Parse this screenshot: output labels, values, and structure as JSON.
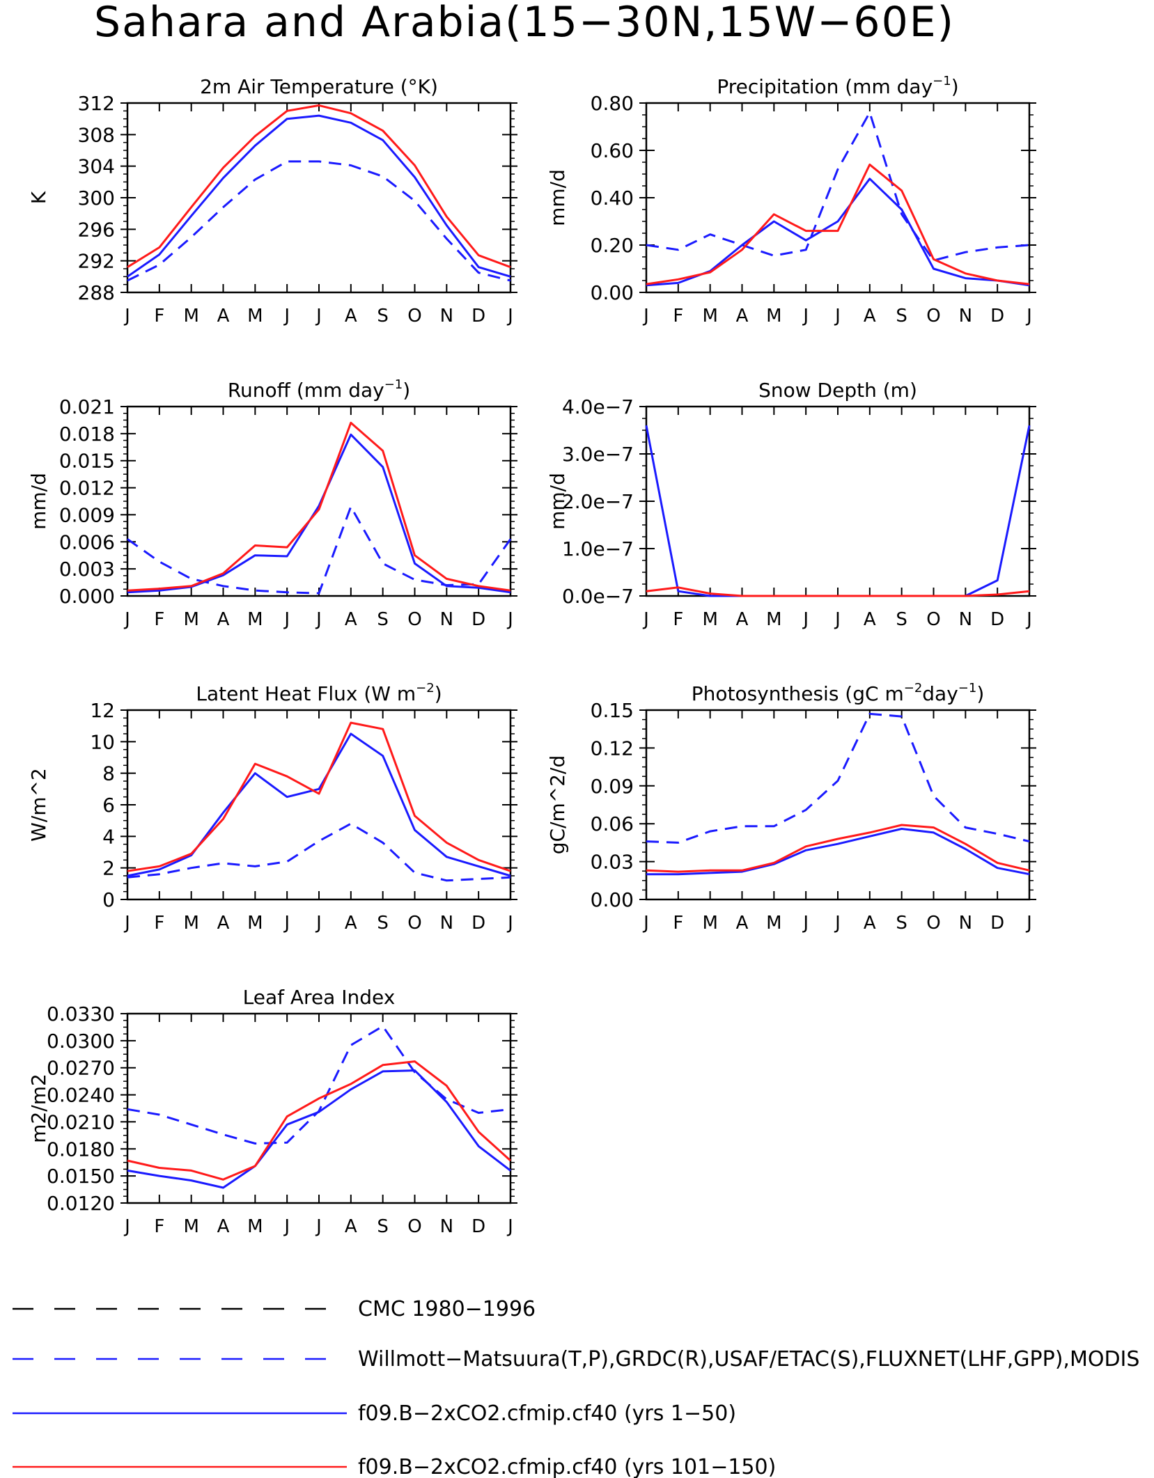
{
  "page_title": "Sahara and Arabia(15−30N,15W−60E)",
  "months": [
    "J",
    "F",
    "M",
    "A",
    "M",
    "J",
    "J",
    "A",
    "S",
    "O",
    "N",
    "D",
    "J"
  ],
  "colors": {
    "obs": "#1a1aff",
    "run1": "#1a1aff",
    "run2": "#ff1a1a",
    "cmc": "#000000"
  },
  "legend": [
    {
      "key": "cmc",
      "label": "CMC 1980−1996",
      "color": "#000000",
      "dash": true
    },
    {
      "key": "obs",
      "label": "Willmott−Matsuura(T,P),GRDC(R),USAF/ETAC(S),FLUXNET(LHF,GPP),MODIS",
      "color": "#1a1aff",
      "dash": true
    },
    {
      "key": "run1",
      "label": "f09.B−2xCO2.cfmip.cf40 (yrs 1−50)",
      "color": "#1a1aff",
      "dash": false
    },
    {
      "key": "run2",
      "label": "f09.B−2xCO2.cfmip.cf40 (yrs 101−150)",
      "color": "#ff1a1a",
      "dash": false
    }
  ],
  "chart_data": [
    {
      "type": "line",
      "title": "2m Air Temperature (°K)",
      "ylabel": "K",
      "ylim": [
        288,
        312
      ],
      "yticks": [
        "288",
        "292",
        "296",
        "300",
        "304",
        "308",
        "312"
      ],
      "x": [
        "J",
        "F",
        "M",
        "A",
        "M",
        "J",
        "J",
        "A",
        "S",
        "O",
        "N",
        "D",
        "J"
      ],
      "series": [
        {
          "key": "obs",
          "values": [
            289.5,
            291.5,
            295.0,
            298.8,
            302.3,
            304.6,
            304.6,
            304.1,
            302.7,
            299.6,
            294.8,
            290.5,
            289.5
          ]
        },
        {
          "key": "run1",
          "values": [
            290.0,
            292.8,
            297.7,
            302.5,
            306.6,
            310.0,
            310.4,
            309.5,
            307.3,
            302.6,
            296.5,
            291.2,
            290.0
          ]
        },
        {
          "key": "run2",
          "values": [
            291.2,
            293.7,
            298.8,
            303.8,
            307.8,
            311.0,
            311.7,
            310.7,
            308.5,
            304.1,
            297.6,
            292.7,
            291.2
          ]
        }
      ]
    },
    {
      "type": "line",
      "title": "Precipitation (mm day",
      "title_sup": "−1",
      "title_end": ")",
      "ylabel": "mm/d",
      "ylim": [
        0,
        0.8
      ],
      "yticks": [
        "0.00",
        "0.20",
        "0.40",
        "0.60",
        "0.80"
      ],
      "x": [
        "J",
        "F",
        "M",
        "A",
        "M",
        "J",
        "J",
        "A",
        "S",
        "O",
        "N",
        "D",
        "J"
      ],
      "series": [
        {
          "key": "obs",
          "values": [
            0.2,
            0.18,
            0.245,
            0.2,
            0.155,
            0.18,
            0.52,
            0.76,
            0.33,
            0.135,
            0.17,
            0.19,
            0.2
          ]
        },
        {
          "key": "run1",
          "values": [
            0.03,
            0.04,
            0.09,
            0.2,
            0.3,
            0.22,
            0.3,
            0.48,
            0.35,
            0.1,
            0.06,
            0.05,
            0.03
          ]
        },
        {
          "key": "run2",
          "values": [
            0.035,
            0.055,
            0.085,
            0.18,
            0.33,
            0.26,
            0.26,
            0.54,
            0.43,
            0.14,
            0.08,
            0.05,
            0.035
          ]
        }
      ]
    },
    {
      "type": "line",
      "title": "Runoff (mm day",
      "title_sup": "−1",
      "title_end": ")",
      "ylabel": "mm/d",
      "ylim": [
        0,
        0.021
      ],
      "yticks": [
        "0.000",
        "0.003",
        "0.006",
        "0.009",
        "0.012",
        "0.015",
        "0.018",
        "0.021"
      ],
      "x": [
        "J",
        "F",
        "M",
        "A",
        "M",
        "J",
        "J",
        "A",
        "S",
        "O",
        "N",
        "D",
        "J"
      ],
      "series": [
        {
          "key": "obs",
          "values": [
            0.0063,
            0.0038,
            0.0019,
            0.0011,
            0.0006,
            0.0004,
            0.0003,
            0.0099,
            0.0036,
            0.0018,
            0.0012,
            0.0013,
            0.0063
          ]
        },
        {
          "key": "run1",
          "values": [
            0.0004,
            0.0006,
            0.001,
            0.0023,
            0.0045,
            0.0044,
            0.01,
            0.0179,
            0.0143,
            0.0036,
            0.0011,
            0.0009,
            0.0004
          ]
        },
        {
          "key": "run2",
          "values": [
            0.0006,
            0.0008,
            0.0011,
            0.0025,
            0.0056,
            0.0054,
            0.0096,
            0.0192,
            0.0161,
            0.0045,
            0.0019,
            0.0011,
            0.0006
          ]
        }
      ]
    },
    {
      "type": "line",
      "title": "Snow Depth (m)",
      "ylabel": "mm/d",
      "ylim": [
        0,
        4e-07
      ],
      "yticks": [
        "0.0e−7",
        "1.0e−7",
        "2.0e−7",
        "3.0e−7",
        "4.0e−7"
      ],
      "x": [
        "J",
        "F",
        "M",
        "A",
        "M",
        "J",
        "J",
        "A",
        "S",
        "O",
        "N",
        "D",
        "J"
      ],
      "series": [
        {
          "key": "run1",
          "values": [
            3.6e-07,
            1e-08,
            0,
            0,
            0,
            0,
            0,
            0,
            0,
            0,
            0,
            3.3e-08,
            3.6e-07
          ]
        },
        {
          "key": "run2",
          "values": [
            1e-08,
            1.8e-08,
            5e-09,
            0,
            0,
            0,
            0,
            0,
            0,
            0,
            0,
            3e-09,
            1e-08
          ]
        }
      ]
    },
    {
      "type": "line",
      "title": "Latent Heat Flux (W m",
      "title_sup": "−2",
      "title_end": ")",
      "ylabel": "W/m^2",
      "ylim": [
        0,
        12
      ],
      "yticks": [
        "0",
        "2",
        "4",
        "6",
        "8",
        "10",
        "12"
      ],
      "x": [
        "J",
        "F",
        "M",
        "A",
        "M",
        "J",
        "J",
        "A",
        "S",
        "O",
        "N",
        "D",
        "J"
      ],
      "series": [
        {
          "key": "obs",
          "values": [
            1.4,
            1.6,
            2.0,
            2.3,
            2.1,
            2.4,
            3.7,
            4.8,
            3.6,
            1.7,
            1.2,
            1.3,
            1.4
          ]
        },
        {
          "key": "run1",
          "values": [
            1.5,
            1.9,
            2.8,
            5.5,
            8.0,
            6.5,
            7.0,
            10.5,
            9.1,
            4.4,
            2.7,
            2.1,
            1.5
          ]
        },
        {
          "key": "run2",
          "values": [
            1.8,
            2.1,
            2.9,
            5.1,
            8.6,
            7.8,
            6.7,
            11.2,
            10.8,
            5.3,
            3.6,
            2.5,
            1.8
          ]
        }
      ]
    },
    {
      "type": "line",
      "title": "Photosynthesis (gC m",
      "title_sup": "−2",
      "title_mid": "day",
      "title_sup2": "−1",
      "title_end": ")",
      "ylabel": "gC/m^2/d",
      "ylim": [
        0,
        0.15
      ],
      "yticks": [
        "0.00",
        "0.03",
        "0.06",
        "0.09",
        "0.12",
        "0.15"
      ],
      "x": [
        "J",
        "F",
        "M",
        "A",
        "M",
        "J",
        "J",
        "A",
        "S",
        "O",
        "N",
        "D",
        "J"
      ],
      "series": [
        {
          "key": "obs",
          "values": [
            0.046,
            0.045,
            0.054,
            0.058,
            0.058,
            0.071,
            0.094,
            0.147,
            0.145,
            0.082,
            0.057,
            0.052,
            0.046
          ]
        },
        {
          "key": "run1",
          "values": [
            0.02,
            0.02,
            0.021,
            0.022,
            0.028,
            0.039,
            0.044,
            0.05,
            0.056,
            0.053,
            0.04,
            0.025,
            0.02
          ]
        },
        {
          "key": "run2",
          "values": [
            0.023,
            0.022,
            0.023,
            0.023,
            0.029,
            0.042,
            0.048,
            0.053,
            0.059,
            0.057,
            0.044,
            0.029,
            0.023
          ]
        }
      ]
    },
    {
      "type": "line",
      "title": "Leaf Area Index",
      "ylabel": "m2/m2",
      "ylim": [
        0.012,
        0.033
      ],
      "yticks": [
        "0.0120",
        "0.0150",
        "0.0180",
        "0.0210",
        "0.0240",
        "0.0270",
        "0.0300",
        "0.0330"
      ],
      "x": [
        "J",
        "F",
        "M",
        "A",
        "M",
        "J",
        "J",
        "A",
        "S",
        "O",
        "N",
        "D",
        "J"
      ],
      "series": [
        {
          "key": "obs",
          "values": [
            0.0224,
            0.0218,
            0.0207,
            0.0196,
            0.0186,
            0.0187,
            0.0222,
            0.0295,
            0.0316,
            0.0265,
            0.0235,
            0.022,
            0.0224
          ]
        },
        {
          "key": "run1",
          "values": [
            0.0156,
            0.015,
            0.0145,
            0.0137,
            0.0161,
            0.0207,
            0.0221,
            0.0246,
            0.0266,
            0.0267,
            0.0232,
            0.0183,
            0.0156
          ]
        },
        {
          "key": "run2",
          "values": [
            0.0167,
            0.0159,
            0.0156,
            0.0146,
            0.0161,
            0.0216,
            0.0236,
            0.0252,
            0.0273,
            0.0277,
            0.025,
            0.0199,
            0.0167
          ]
        }
      ]
    }
  ]
}
